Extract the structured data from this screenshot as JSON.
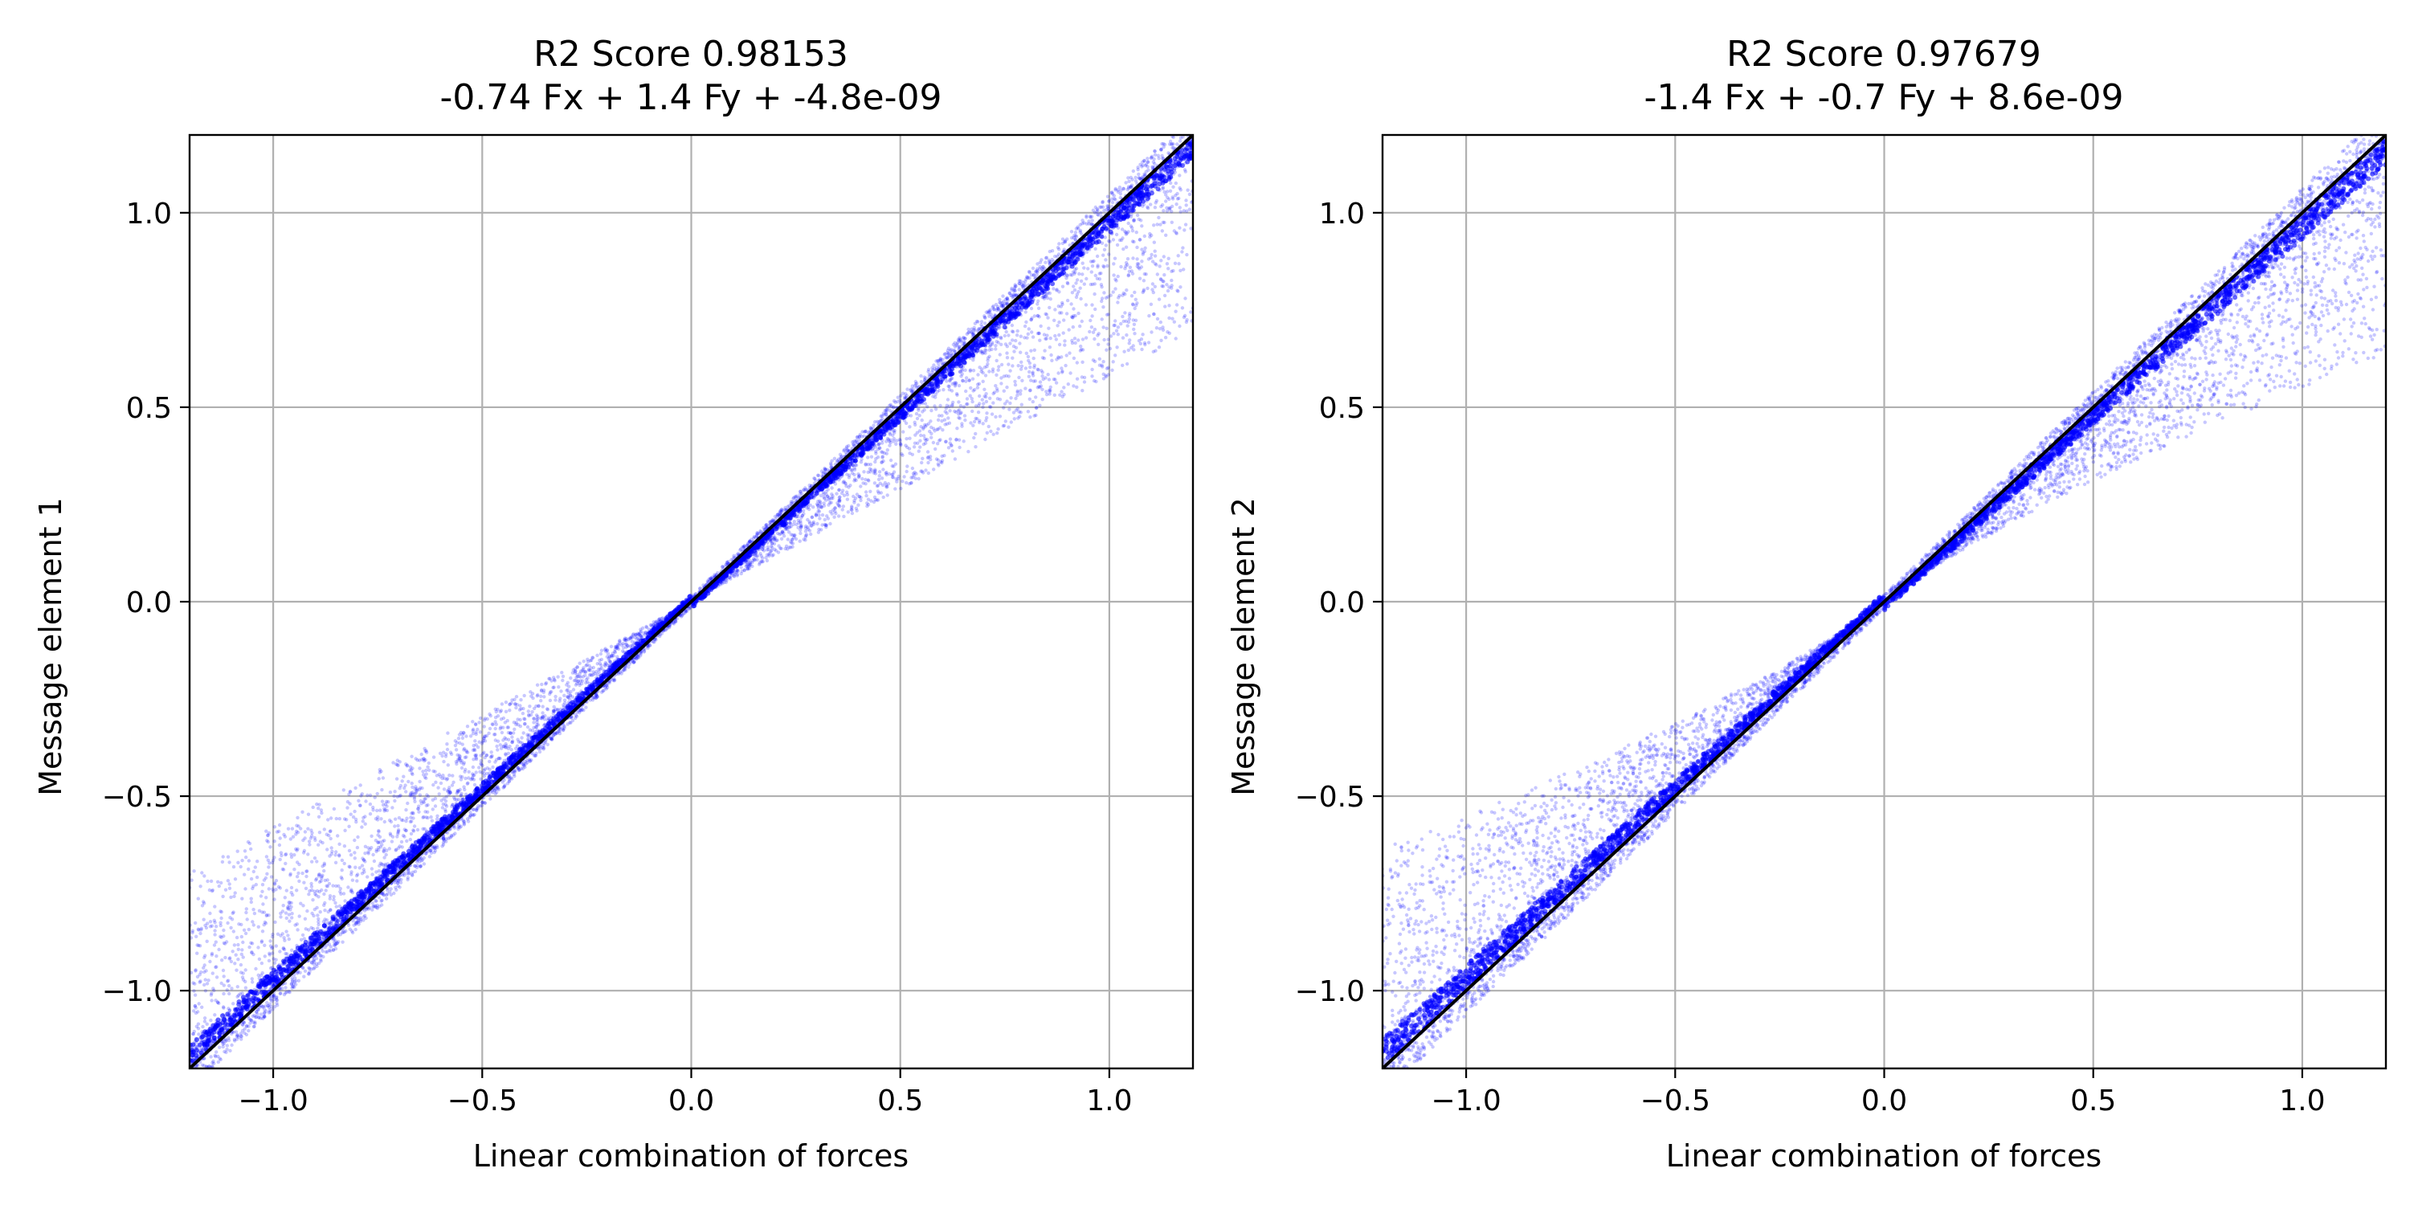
{
  "colors": {
    "points": "#0000ff",
    "fit_line": "#000000",
    "grid": "#b0b0b0",
    "axes": "#000000"
  },
  "chart_data": [
    {
      "type": "scatter",
      "title": "R2 Score 0.98153",
      "subtitle": "-0.74 Fx + 1.4 Fy + -4.8e-09",
      "xlabel": "Linear combination of forces",
      "ylabel": "Message element 1",
      "xlim": [
        -1.2,
        1.2
      ],
      "ylim": [
        -1.2,
        1.2
      ],
      "xticks": [
        -1.0,
        -0.5,
        0.0,
        0.5,
        1.0
      ],
      "yticks": [
        -1.0,
        -0.5,
        0.0,
        0.5,
        1.0
      ],
      "xtick_labels": [
        "−1.0",
        "−0.5",
        "0.0",
        "0.5",
        "1.0"
      ],
      "ytick_labels": [
        "−1.0",
        "−0.5",
        "0.0",
        "0.5",
        "1.0"
      ],
      "grid": true,
      "reference_line": {
        "x": [
          -1.2,
          1.2
        ],
        "y": [
          -1.2,
          1.2
        ]
      },
      "point_cloud": {
        "spread": 0.42,
        "spread_power": 1.0,
        "bias": "toward_zero",
        "core_width": 0.035
      }
    },
    {
      "type": "scatter",
      "title": "R2 Score 0.97679",
      "subtitle": "-1.4 Fx + -0.7 Fy + 8.6e-09",
      "xlabel": "Linear combination of forces",
      "ylabel": "Message element 2",
      "xlim": [
        -1.2,
        1.2
      ],
      "ylim": [
        -1.2,
        1.2
      ],
      "xticks": [
        -1.0,
        -0.5,
        0.0,
        0.5,
        1.0
      ],
      "yticks": [
        -1.0,
        -0.5,
        0.0,
        0.5,
        1.0
      ],
      "xtick_labels": [
        "−1.0",
        "−0.5",
        "0.0",
        "0.5",
        "1.0"
      ],
      "ytick_labels": [
        "−1.0",
        "−0.5",
        "0.0",
        "0.5",
        "1.0"
      ],
      "grid": true,
      "reference_line": {
        "x": [
          -1.2,
          1.2
        ],
        "y": [
          -1.2,
          1.2
        ]
      },
      "point_cloud": {
        "spread": 0.45,
        "spread_power": 1.25,
        "bias": "toward_zero",
        "core_width": 0.045
      }
    }
  ]
}
